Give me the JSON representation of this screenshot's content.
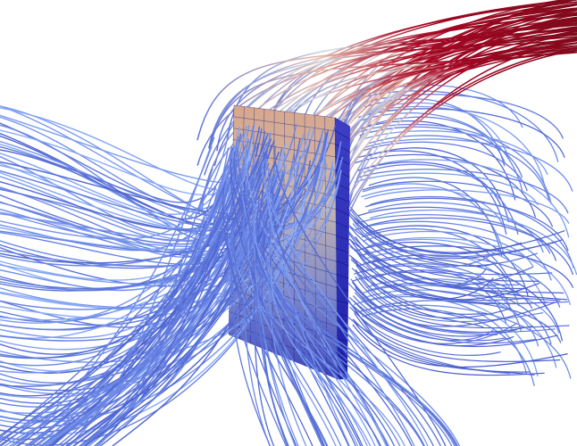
{
  "scene": {
    "kind": "streamline-visualization",
    "background_color": "#ffffff",
    "colormap": [
      "#3b4cc0",
      "#8db0fe",
      "#dddddd",
      "#f49a7b",
      "#b40426",
      "#7a0a1a"
    ],
    "obstacle": {
      "mesh_line_color": "#1a1f8a",
      "front_gradient": [
        "#3a43b8",
        "#7c86c9",
        "#c9b8b0",
        "#d9a78b"
      ],
      "side_color": "#2b2fb5"
    }
  }
}
